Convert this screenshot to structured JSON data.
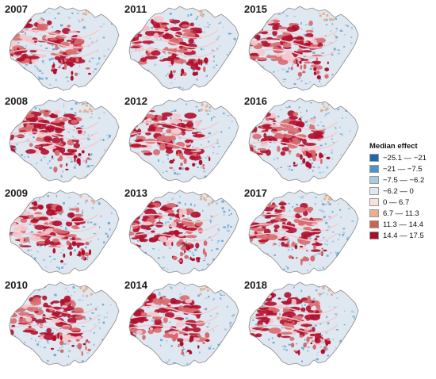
{
  "years": [
    "2007",
    "2011",
    "2015",
    "2008",
    "2012",
    "2016",
    "2009",
    "2013",
    "2017",
    "2010",
    "2014",
    "2018"
  ],
  "legend": {
    "title": "Median effect",
    "items": [
      {
        "label": "−25.1 — −21",
        "color": "#2166ac"
      },
      {
        "label": "−21 — −7.5",
        "color": "#4f93cc"
      },
      {
        "label": "−7.5 — −6.2",
        "color": "#a6cbe3"
      },
      {
        "label": "−6.2 — 0",
        "color": "#dde8f0"
      },
      {
        "label": "0 — 6.7",
        "color": "#f7e3dc"
      },
      {
        "label": "6.7 — 11.3",
        "color": "#e8b090"
      },
      {
        "label": "11.3 — 14.4",
        "color": "#c76554"
      },
      {
        "label": "14.4 — 17.5",
        "color": "#a80e2c"
      }
    ]
  },
  "colors": {
    "background_fill": "#dfe8f0",
    "outline": "#8a8a8a",
    "high_effect": "#b0102e",
    "mid_effect": "#d86a6f",
    "low_effect": "#f4c8cc",
    "negative_effect": "#5b9bd0"
  }
}
